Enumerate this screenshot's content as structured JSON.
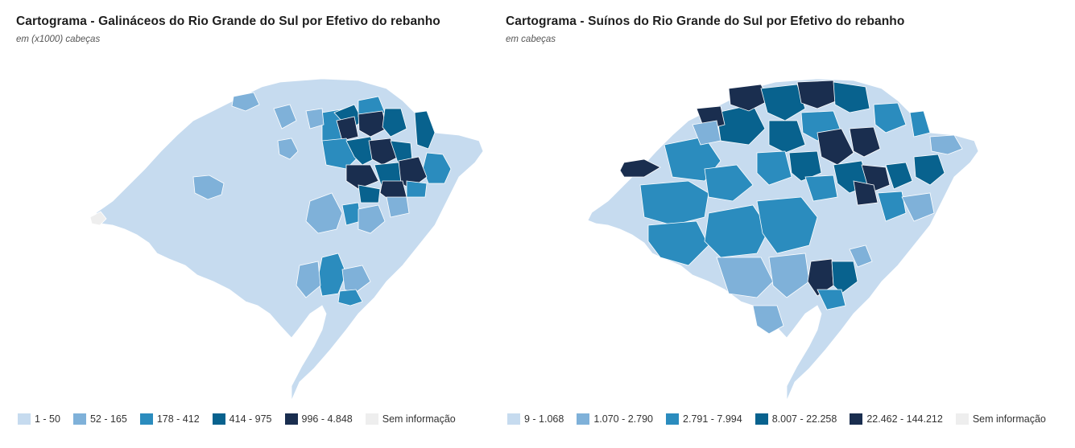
{
  "colors": {
    "c1": "#c6dbef",
    "c2": "#7fb1d9",
    "c3": "#2b8cbe",
    "c4": "#08628e",
    "c5": "#1a2e4f",
    "na": "#eeeeee",
    "border": "#ffffff"
  },
  "maps": [
    {
      "title": "Cartograma - Galináceos do Rio Grande do Sul por Efetivo do rebanho",
      "subtitle": "em (x1000) cabeças",
      "legend": [
        {
          "label": "1 - 50",
          "color": "#c6dbef"
        },
        {
          "label": "52 - 165",
          "color": "#7fb1d9"
        },
        {
          "label": "178 - 412",
          "color": "#2b8cbe"
        },
        {
          "label": "414 - 975",
          "color": "#08628e"
        },
        {
          "label": "996 - 4.848",
          "color": "#1a2e4f"
        },
        {
          "label": "Sem informação",
          "color": "#eeeeee"
        }
      ]
    },
    {
      "title": "Cartograma - Suínos do Rio Grande do Sul por Efetivo do rebanho",
      "subtitle": "em cabeças",
      "legend": [
        {
          "label": "9 - 1.068",
          "color": "#c6dbef"
        },
        {
          "label": "1.070 - 2.790",
          "color": "#7fb1d9"
        },
        {
          "label": "2.791 - 7.994",
          "color": "#2b8cbe"
        },
        {
          "label": "8.007 - 22.258",
          "color": "#08628e"
        },
        {
          "label": "22.462 - 144.212",
          "color": "#1a2e4f"
        },
        {
          "label": "Sem informação",
          "color": "#eeeeee"
        }
      ]
    }
  ]
}
